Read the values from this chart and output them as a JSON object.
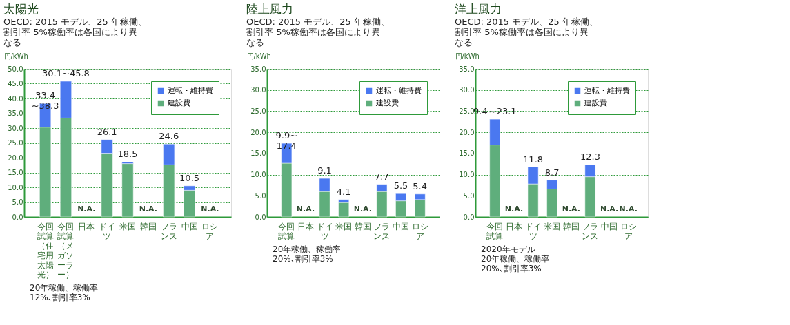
{
  "chart_data": [
    {
      "type": "bar",
      "stacked": true,
      "title": "太陽光",
      "subtitle": "OECD: 2015 モデル、25 年稼働、割引率 5%稼働率は各国により異なる",
      "ylabel": "円/kWh",
      "categories": [
        "今回試算（住宅用太陽光）",
        "今回試算（メガソーラー）",
        "日本",
        "ドイツ",
        "米国",
        "韓国",
        "フランス",
        "中国",
        "ロシア"
      ],
      "series": [
        {
          "name": "建設費",
          "color": "#5fae7c",
          "values": [
            30.3,
            33.4,
            null,
            21.5,
            18.0,
            null,
            17.6,
            9.0,
            null
          ]
        },
        {
          "name": "運転・維持費",
          "color": "#4a78f0",
          "values": [
            8.0,
            12.4,
            null,
            4.6,
            0.5,
            null,
            7.0,
            1.5,
            null
          ]
        }
      ],
      "totals": [
        "33.4\n~38.3",
        "30.1~45.8",
        "N.A.",
        "26.1",
        "18.5",
        "N.A.",
        "24.6",
        "10.5",
        "N.A."
      ],
      "ylim": [
        0,
        50
      ],
      "yticks": [
        {
          "value": 0,
          "label": "0.0"
        },
        {
          "value": 5,
          "label": "5.0"
        },
        {
          "value": 10,
          "label": "10.0"
        },
        {
          "value": 15,
          "label": "15.0"
        },
        {
          "value": 20,
          "label": "20.0"
        },
        {
          "value": 25,
          "label": "25.0"
        },
        {
          "value": 30,
          "label": "30.0"
        },
        {
          "value": 35,
          "label": "35.0"
        },
        {
          "value": 40,
          "label": "40.0"
        },
        {
          "value": 45,
          "label": "45.0"
        },
        {
          "value": 50,
          "label": "50.0"
        }
      ],
      "grid": "y",
      "legend": "top right",
      "annotations": [
        "20年稼働、稼働率",
        "12%､割引率3%"
      ]
    },
    {
      "type": "bar",
      "stacked": true,
      "title": "陸上風力",
      "subtitle": "OECD: 2015 モデル、25 年稼働、割引率 5%稼働率は各国により異なる",
      "ylabel": "円/kWh",
      "categories": [
        "今回試算",
        "日本",
        "ドイツ",
        "米国",
        "韓国",
        "フランス",
        "中国",
        "ロシア"
      ],
      "series": [
        {
          "name": "建設費",
          "color": "#5fae7c",
          "values": [
            12.7,
            null,
            6.0,
            3.4,
            null,
            6.0,
            3.8,
            4.1
          ]
        },
        {
          "name": "運転・維持費",
          "color": "#4a78f0",
          "values": [
            4.7,
            null,
            3.1,
            0.7,
            null,
            1.7,
            1.7,
            1.3
          ]
        }
      ],
      "totals": [
        "9.9~\n17.4",
        "N.A.",
        "9.1",
        "4.1",
        "N.A.",
        "7.7",
        "5.5",
        "5.4"
      ],
      "ylim": [
        0,
        35
      ],
      "yticks": [
        {
          "value": 0,
          "label": "0.0"
        },
        {
          "value": 5,
          "label": "5.0"
        },
        {
          "value": 10,
          "label": "10.0"
        },
        {
          "value": 15,
          "label": "15.0"
        },
        {
          "value": 20,
          "label": "20.0"
        },
        {
          "value": 25,
          "label": "25.0"
        },
        {
          "value": 30,
          "label": "30.0"
        },
        {
          "value": 35,
          "label": "35.0"
        }
      ],
      "grid": "y",
      "legend": "top right",
      "annotations": [
        "20年稼働、稼働率",
        "20%､割引率3%"
      ]
    },
    {
      "type": "bar",
      "stacked": true,
      "title": "洋上風力",
      "subtitle": "OECD: 2015 モデル、25 年稼働、割引率 5%稼働率は各国により異なる",
      "ylabel": "円/kWh",
      "categories": [
        "今回試算",
        "日本",
        "ドイツ",
        "米国",
        "韓国",
        "フランス",
        "中国",
        "ロシア"
      ],
      "series": [
        {
          "name": "建設費",
          "color": "#5fae7c",
          "values": [
            17.0,
            null,
            7.8,
            6.6,
            null,
            9.5,
            null,
            null
          ]
        },
        {
          "name": "運転・維持費",
          "color": "#4a78f0",
          "values": [
            6.1,
            null,
            4.0,
            2.1,
            null,
            2.8,
            null,
            null
          ]
        }
      ],
      "totals": [
        "9.4～23.1",
        "N.A.",
        "11.8",
        "8.7",
        "N.A.",
        "12.3",
        "N.A.",
        "N.A."
      ],
      "ylim": [
        0,
        35
      ],
      "yticks": [
        {
          "value": 0,
          "label": "0.0"
        },
        {
          "value": 5,
          "label": "5.0"
        },
        {
          "value": 10,
          "label": "10.0"
        },
        {
          "value": 15,
          "label": "15.0"
        },
        {
          "value": 20,
          "label": "20.0"
        },
        {
          "value": 25,
          "label": "25.0"
        },
        {
          "value": 30,
          "label": "30.0"
        },
        {
          "value": 35,
          "label": "35.0"
        }
      ],
      "grid": "y",
      "legend": "top right",
      "annotations": [
        "2020年モデル",
        "20年稼働、稼働率",
        "20%､割引率3%"
      ]
    }
  ]
}
